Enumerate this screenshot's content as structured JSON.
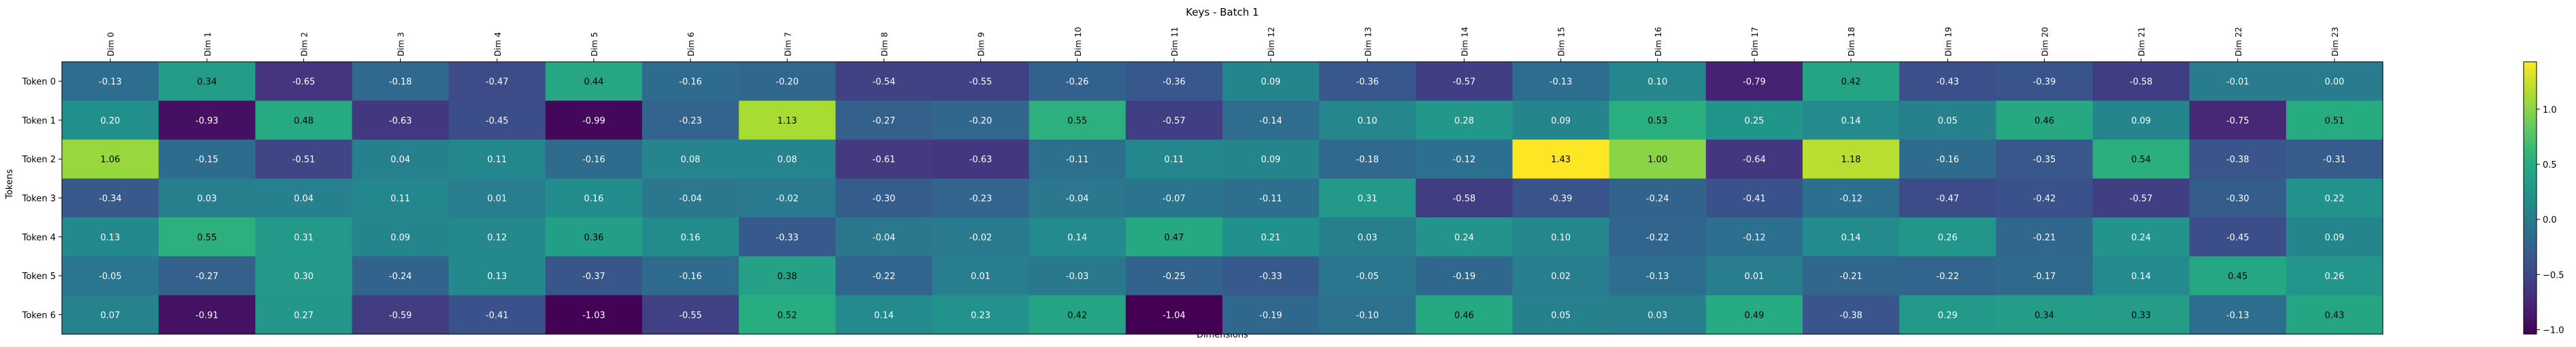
{
  "chart_data": {
    "type": "heatmap",
    "title": "Keys - Batch 1",
    "xlabel": "Dimensions",
    "ylabel": "Tokens",
    "x_categories": [
      "Dim 0",
      "Dim 1",
      "Dim 2",
      "Dim 3",
      "Dim 4",
      "Dim 5",
      "Dim 6",
      "Dim 7",
      "Dim 8",
      "Dim 9",
      "Dim 10",
      "Dim 11",
      "Dim 12",
      "Dim 13",
      "Dim 14",
      "Dim 15",
      "Dim 16",
      "Dim 17",
      "Dim 18",
      "Dim 19",
      "Dim 20",
      "Dim 21",
      "Dim 22",
      "Dim 23"
    ],
    "y_categories": [
      "Token 0",
      "Token 1",
      "Token 2",
      "Token 3",
      "Token 4",
      "Token 5",
      "Token 6"
    ],
    "values": [
      [
        -0.13,
        0.34,
        -0.65,
        -0.18,
        -0.47,
        0.44,
        -0.16,
        -0.2,
        -0.54,
        -0.55,
        -0.26,
        -0.36,
        0.09,
        -0.36,
        -0.57,
        -0.13,
        0.1,
        -0.79,
        0.42,
        -0.43,
        -0.39,
        -0.58,
        -0.01,
        0.0
      ],
      [
        0.2,
        -0.93,
        0.48,
        -0.63,
        -0.45,
        -0.99,
        -0.23,
        1.13,
        -0.27,
        -0.2,
        0.55,
        -0.57,
        -0.14,
        0.1,
        0.28,
        0.09,
        0.53,
        0.25,
        0.14,
        0.05,
        0.46,
        0.09,
        -0.75,
        0.51
      ],
      [
        1.06,
        -0.15,
        -0.51,
        0.04,
        0.11,
        -0.16,
        0.08,
        0.08,
        -0.61,
        -0.63,
        -0.11,
        0.11,
        0.09,
        -0.18,
        -0.12,
        1.43,
        1.0,
        -0.64,
        1.18,
        -0.16,
        -0.35,
        0.54,
        -0.38,
        -0.31
      ],
      [
        -0.34,
        0.03,
        0.04,
        0.11,
        0.01,
        0.16,
        -0.04,
        -0.02,
        -0.3,
        -0.23,
        -0.04,
        -0.07,
        -0.11,
        0.31,
        -0.58,
        -0.39,
        -0.24,
        -0.41,
        -0.12,
        -0.47,
        -0.42,
        -0.57,
        -0.3,
        0.22
      ],
      [
        0.13,
        0.55,
        0.31,
        0.09,
        0.12,
        0.36,
        0.16,
        -0.33,
        -0.04,
        -0.02,
        0.14,
        0.47,
        0.21,
        0.03,
        0.24,
        0.1,
        -0.22,
        -0.12,
        0.14,
        0.26,
        -0.21,
        0.24,
        -0.45,
        0.09
      ],
      [
        -0.05,
        -0.27,
        0.3,
        -0.24,
        0.13,
        -0.37,
        -0.16,
        0.38,
        -0.22,
        0.01,
        -0.03,
        -0.25,
        -0.33,
        -0.05,
        -0.19,
        0.02,
        -0.13,
        0.01,
        -0.21,
        -0.22,
        -0.17,
        0.14,
        0.45,
        0.26
      ],
      [
        0.07,
        -0.91,
        0.27,
        -0.59,
        -0.41,
        -1.03,
        -0.55,
        0.52,
        0.14,
        0.23,
        0.42,
        -1.04,
        -0.19,
        -0.1,
        0.46,
        0.05,
        0.03,
        0.49,
        -0.38,
        0.29,
        0.34,
        0.33,
        -0.13,
        0.43
      ]
    ],
    "colormap": "viridis",
    "vmin": -1.04,
    "vmax": 1.43,
    "colorbar_ticks": [
      "−1.0",
      "−0.5",
      "0.0",
      "0.5",
      "1.0"
    ],
    "colorbar_tick_values": [
      -1.0,
      -0.5,
      0.0,
      0.5,
      1.0
    ],
    "grid": false
  }
}
